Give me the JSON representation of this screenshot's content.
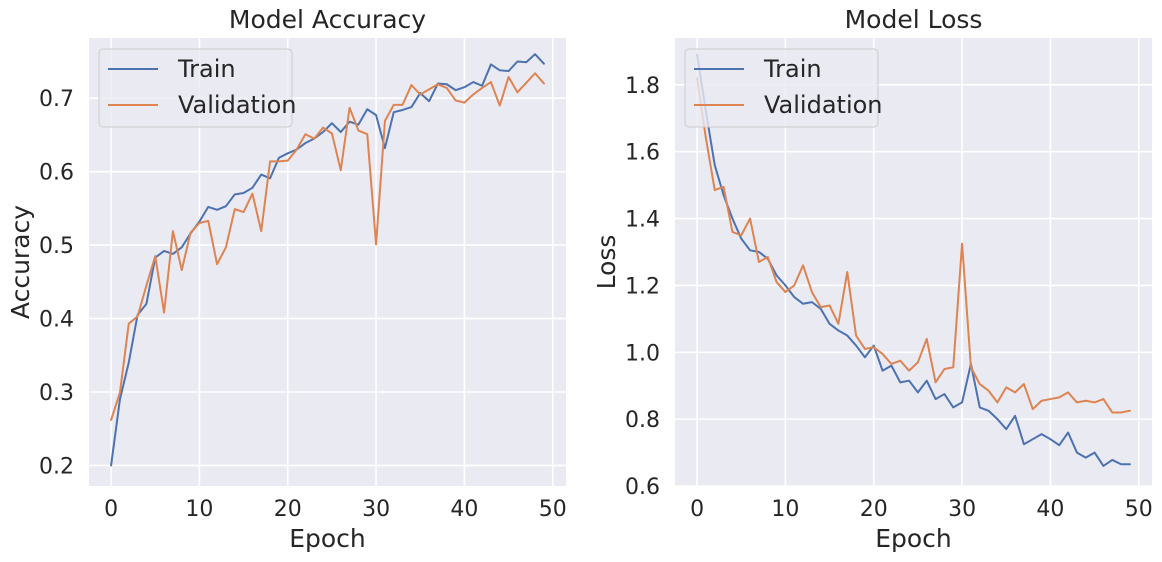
{
  "colors": {
    "train": "#4c72b0",
    "validation": "#dd8452",
    "background": "#eaeaf2",
    "grid": "#ffffff",
    "text": "#262626"
  },
  "chart_data": [
    {
      "type": "line",
      "title": "Model Accuracy",
      "xlabel": "Epoch",
      "ylabel": "Accuracy",
      "xlim": [
        -2.5,
        51.5
      ],
      "ylim": [
        0.172,
        0.782
      ],
      "xticks": [
        0,
        10,
        20,
        30,
        40,
        50
      ],
      "xtick_labels": [
        "0",
        "10",
        "20",
        "30",
        "40",
        "50"
      ],
      "yticks": [
        0.2,
        0.3,
        0.4,
        0.5,
        0.6,
        0.7
      ],
      "ytick_labels": [
        "0.2",
        "0.3",
        "0.4",
        "0.5",
        "0.6",
        "0.7"
      ],
      "grid": true,
      "legend_position": "top-left",
      "x": [
        0,
        1,
        2,
        3,
        4,
        5,
        6,
        7,
        8,
        9,
        10,
        11,
        12,
        13,
        14,
        15,
        16,
        17,
        18,
        19,
        20,
        21,
        22,
        23,
        24,
        25,
        26,
        27,
        28,
        29,
        30,
        31,
        32,
        33,
        34,
        35,
        36,
        37,
        38,
        39,
        40,
        41,
        42,
        43,
        44,
        45,
        46,
        47,
        48,
        49
      ],
      "series": [
        {
          "name": "Train",
          "color_key": "train",
          "values": [
            0.2,
            0.29,
            0.34,
            0.405,
            0.42,
            0.483,
            0.492,
            0.488,
            0.497,
            0.516,
            0.532,
            0.552,
            0.548,
            0.553,
            0.569,
            0.571,
            0.578,
            0.596,
            0.591,
            0.619,
            0.625,
            0.63,
            0.639,
            0.645,
            0.654,
            0.666,
            0.654,
            0.668,
            0.664,
            0.685,
            0.677,
            0.632,
            0.681,
            0.684,
            0.688,
            0.707,
            0.696,
            0.72,
            0.719,
            0.711,
            0.715,
            0.722,
            0.717,
            0.746,
            0.738,
            0.737,
            0.75,
            0.749,
            0.76,
            0.747
          ]
        },
        {
          "name": "Validation",
          "color_key": "validation",
          "values": [
            0.262,
            0.299,
            0.393,
            0.403,
            0.445,
            0.485,
            0.408,
            0.519,
            0.466,
            0.517,
            0.53,
            0.533,
            0.474,
            0.497,
            0.549,
            0.545,
            0.57,
            0.519,
            0.614,
            0.614,
            0.615,
            0.63,
            0.651,
            0.645,
            0.66,
            0.652,
            0.602,
            0.687,
            0.656,
            0.651,
            0.501,
            0.669,
            0.691,
            0.691,
            0.718,
            0.705,
            0.712,
            0.719,
            0.714,
            0.697,
            0.694,
            0.705,
            0.714,
            0.722,
            0.69,
            0.729,
            0.708,
            0.721,
            0.734,
            0.72
          ]
        }
      ]
    },
    {
      "type": "line",
      "title": "Model Loss",
      "xlabel": "Epoch",
      "ylabel": "Loss",
      "xlim": [
        -2.5,
        51.5
      ],
      "ylim": [
        0.6,
        1.94
      ],
      "xticks": [
        0,
        10,
        20,
        30,
        40,
        50
      ],
      "xtick_labels": [
        "0",
        "10",
        "20",
        "30",
        "40",
        "50"
      ],
      "yticks": [
        0.6,
        0.8,
        1.0,
        1.2,
        1.4,
        1.6,
        1.8
      ],
      "ytick_labels": [
        "0.6",
        "0.8",
        "1.0",
        "1.2",
        "1.4",
        "1.6",
        "1.8"
      ],
      "grid": true,
      "legend_position": "top-left",
      "x": [
        0,
        1,
        2,
        3,
        4,
        5,
        6,
        7,
        8,
        9,
        10,
        11,
        12,
        13,
        14,
        15,
        16,
        17,
        18,
        19,
        20,
        21,
        22,
        23,
        24,
        25,
        26,
        27,
        28,
        29,
        30,
        31,
        32,
        33,
        34,
        35,
        36,
        37,
        38,
        39,
        40,
        41,
        42,
        43,
        44,
        45,
        46,
        47,
        48,
        49
      ],
      "series": [
        {
          "name": "Train",
          "color_key": "train",
          "values": [
            1.89,
            1.72,
            1.56,
            1.47,
            1.4,
            1.34,
            1.305,
            1.3,
            1.28,
            1.23,
            1.2,
            1.165,
            1.145,
            1.15,
            1.13,
            1.085,
            1.065,
            1.05,
            1.02,
            0.985,
            1.02,
            0.945,
            0.96,
            0.91,
            0.915,
            0.88,
            0.915,
            0.86,
            0.875,
            0.835,
            0.85,
            0.965,
            0.835,
            0.825,
            0.8,
            0.77,
            0.81,
            0.725,
            0.74,
            0.755,
            0.74,
            0.722,
            0.76,
            0.7,
            0.685,
            0.7,
            0.66,
            0.678,
            0.665,
            0.665
          ]
        },
        {
          "name": "Validation",
          "color_key": "validation",
          "values": [
            1.82,
            1.64,
            1.485,
            1.495,
            1.36,
            1.35,
            1.4,
            1.27,
            1.285,
            1.21,
            1.18,
            1.2,
            1.26,
            1.18,
            1.135,
            1.14,
            1.085,
            1.24,
            1.05,
            1.01,
            1.015,
            0.995,
            0.965,
            0.975,
            0.945,
            0.97,
            1.04,
            0.91,
            0.95,
            0.955,
            1.325,
            0.955,
            0.905,
            0.885,
            0.85,
            0.895,
            0.88,
            0.905,
            0.83,
            0.855,
            0.86,
            0.865,
            0.88,
            0.85,
            0.855,
            0.85,
            0.86,
            0.82,
            0.82,
            0.825
          ]
        }
      ]
    }
  ]
}
